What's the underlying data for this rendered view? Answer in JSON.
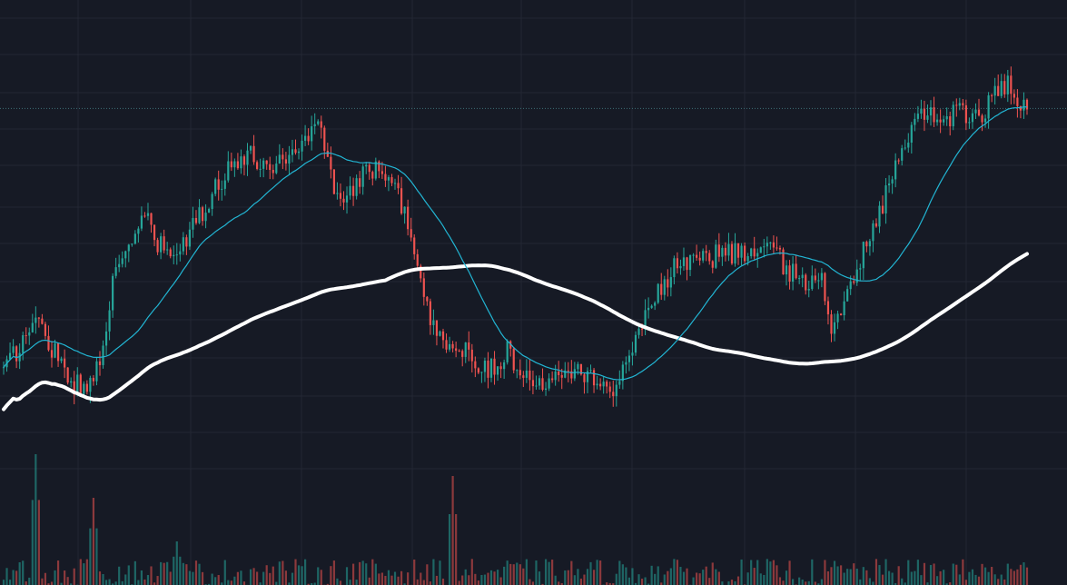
{
  "theme": {
    "background": "#161a25",
    "grid": "#232733",
    "up": "#26a69a",
    "down": "#ef5350",
    "ma_short": "#22b5d3",
    "ma_long": "#ffffff",
    "price_line": "#3d6f75"
  },
  "chart_data": {
    "type": "candlestick",
    "title": "",
    "xlabel": "",
    "ylabel": "",
    "grid": true,
    "legend": "none",
    "ylim": [
      0,
      100
    ],
    "last_price_line": 82,
    "anchors": [
      [
        0,
        32
      ],
      [
        1.5,
        38
      ],
      [
        2.5,
        42
      ],
      [
        4,
        36
      ],
      [
        5.5,
        30
      ],
      [
        6.5,
        28
      ],
      [
        7.5,
        35
      ],
      [
        8.5,
        48
      ],
      [
        10,
        57
      ],
      [
        11,
        62
      ],
      [
        12,
        56
      ],
      [
        13.5,
        54
      ],
      [
        15,
        60
      ],
      [
        16.5,
        67
      ],
      [
        18,
        72
      ],
      [
        19,
        73
      ],
      [
        21,
        71
      ],
      [
        22.5,
        74
      ],
      [
        24,
        77
      ],
      [
        24.8,
        80
      ],
      [
        25.5,
        70
      ],
      [
        26.5,
        62
      ],
      [
        27.5,
        68
      ],
      [
        28.5,
        71
      ],
      [
        29.5,
        70
      ],
      [
        30.5,
        70
      ],
      [
        31.5,
        60
      ],
      [
        32.5,
        52
      ],
      [
        33.5,
        40
      ],
      [
        34.5,
        38
      ],
      [
        36,
        36
      ],
      [
        37.5,
        33
      ],
      [
        38.5,
        33
      ],
      [
        39.5,
        36
      ],
      [
        41,
        30
      ],
      [
        42,
        30
      ],
      [
        43.5,
        33
      ],
      [
        45,
        33
      ],
      [
        46.5,
        30
      ],
      [
        47.5,
        28
      ],
      [
        48.5,
        32
      ],
      [
        50,
        43
      ],
      [
        51.5,
        48
      ],
      [
        52.5,
        53
      ],
      [
        54,
        53
      ],
      [
        55.5,
        54
      ],
      [
        57.5,
        55
      ],
      [
        59.5,
        54
      ],
      [
        60.5,
        57
      ],
      [
        61,
        52
      ],
      [
        62.5,
        49
      ],
      [
        63.5,
        50
      ],
      [
        64,
        49
      ],
      [
        64.6,
        41
      ],
      [
        65.5,
        45
      ],
      [
        66.5,
        48
      ],
      [
        67.5,
        58
      ],
      [
        68.5,
        62
      ],
      [
        69.5,
        70
      ],
      [
        70.5,
        74
      ],
      [
        71.5,
        80
      ],
      [
        72.5,
        82
      ],
      [
        73.5,
        79
      ],
      [
        74.5,
        82
      ],
      [
        75.5,
        80
      ],
      [
        76.5,
        81
      ],
      [
        77.5,
        85
      ],
      [
        78.5,
        86
      ],
      [
        79.5,
        82
      ],
      [
        80,
        81
      ]
    ],
    "volume_peaks": [
      {
        "x": 2.5,
        "v": 12
      },
      {
        "x": 7,
        "v": 8
      },
      {
        "x": 35,
        "v": 10
      },
      {
        "x": 13.5,
        "v": 4
      },
      {
        "x": 65,
        "v": 2
      }
    ],
    "ma_short_period": 10,
    "ma_long_period": 40
  }
}
